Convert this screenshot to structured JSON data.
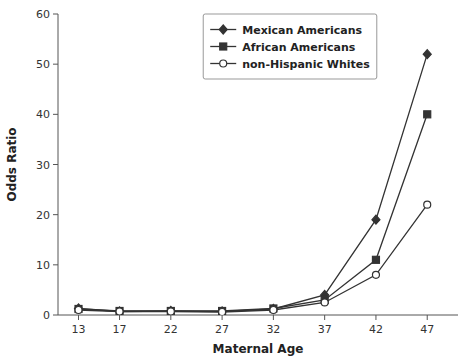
{
  "chart_data": {
    "type": "line",
    "x": [
      13,
      17,
      22,
      27,
      32,
      37,
      42,
      47
    ],
    "series": [
      {
        "name": "Mexican Americans",
        "color": "#333333",
        "marker": "diamond",
        "values": [
          1.3,
          0.7,
          0.8,
          0.7,
          1.2,
          4.0,
          19.0,
          52.0
        ]
      },
      {
        "name": "African Americans",
        "color": "#333333",
        "marker": "square",
        "values": [
          1.2,
          0.8,
          0.8,
          0.8,
          1.3,
          3.0,
          11.0,
          40.0
        ]
      },
      {
        "name": "non-Hispanic Whites",
        "color": "#333333",
        "marker": "circle-open",
        "values": [
          1.0,
          0.7,
          0.7,
          0.6,
          1.0,
          2.5,
          8.0,
          22.0
        ]
      }
    ],
    "xlabel": "Maternal Age",
    "ylabel": "Odds Ratio",
    "xlim": [
      11,
      50
    ],
    "ylim": [
      0,
      60
    ],
    "xticks": [
      13,
      17,
      22,
      27,
      32,
      37,
      42,
      47
    ],
    "yticks": [
      0,
      10,
      20,
      30,
      40,
      50,
      60
    ],
    "grid": false,
    "legend": "upper center"
  }
}
